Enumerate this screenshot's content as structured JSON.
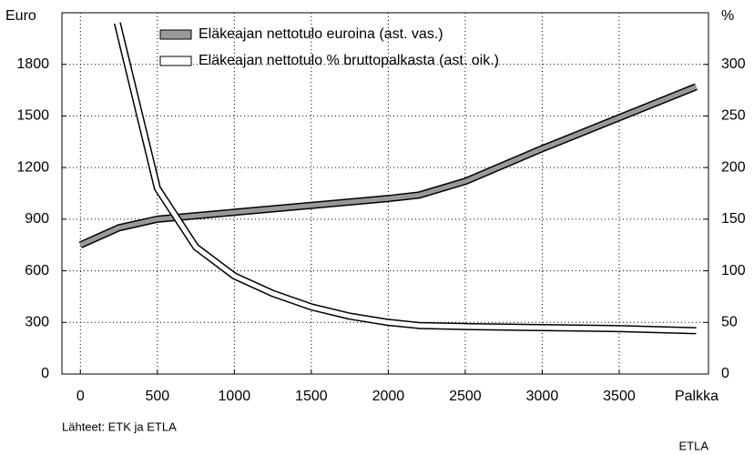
{
  "chart_data": {
    "type": "line",
    "ylabel": "Euro",
    "y2label": "%",
    "xlabel": "Palkka",
    "source": "Lähteet: ETK ja ETLA",
    "credit": "ETLA",
    "xlim": [
      -120,
      4080
    ],
    "xticks": [
      0,
      500,
      1000,
      1500,
      2000,
      2500,
      3000,
      3500
    ],
    "ylim": [
      0,
      2100
    ],
    "yticks": [
      0,
      300,
      600,
      900,
      1200,
      1500,
      1800
    ],
    "y2lim": [
      0,
      350
    ],
    "y2ticks": [
      0,
      50,
      100,
      150,
      200,
      250,
      300
    ],
    "grid": true,
    "series": [
      {
        "name": "Eläkeajan nettotulo euroina (ast. vas.)",
        "color": "#999999",
        "x": [
          0,
          250,
          500,
          1000,
          1500,
          2000,
          2200,
          2500,
          3000,
          3500,
          4000
        ],
        "values": [
          750,
          850,
          900,
          940,
          980,
          1020,
          1040,
          1120,
          1310,
          1490,
          1670
        ]
      },
      {
        "name": "Eläkeajan nettotulo % bruttopalkasta (ast. oik.)",
        "color": "#ffffff",
        "axis": "y2",
        "x": [
          240,
          500,
          750,
          1000,
          1250,
          1500,
          1750,
          2000,
          2200,
          2500,
          3000,
          3500,
          4000
        ],
        "values": [
          340,
          180,
          123,
          95,
          78,
          65,
          56,
          50,
          47,
          46,
          45,
          44,
          42
        ]
      }
    ]
  }
}
